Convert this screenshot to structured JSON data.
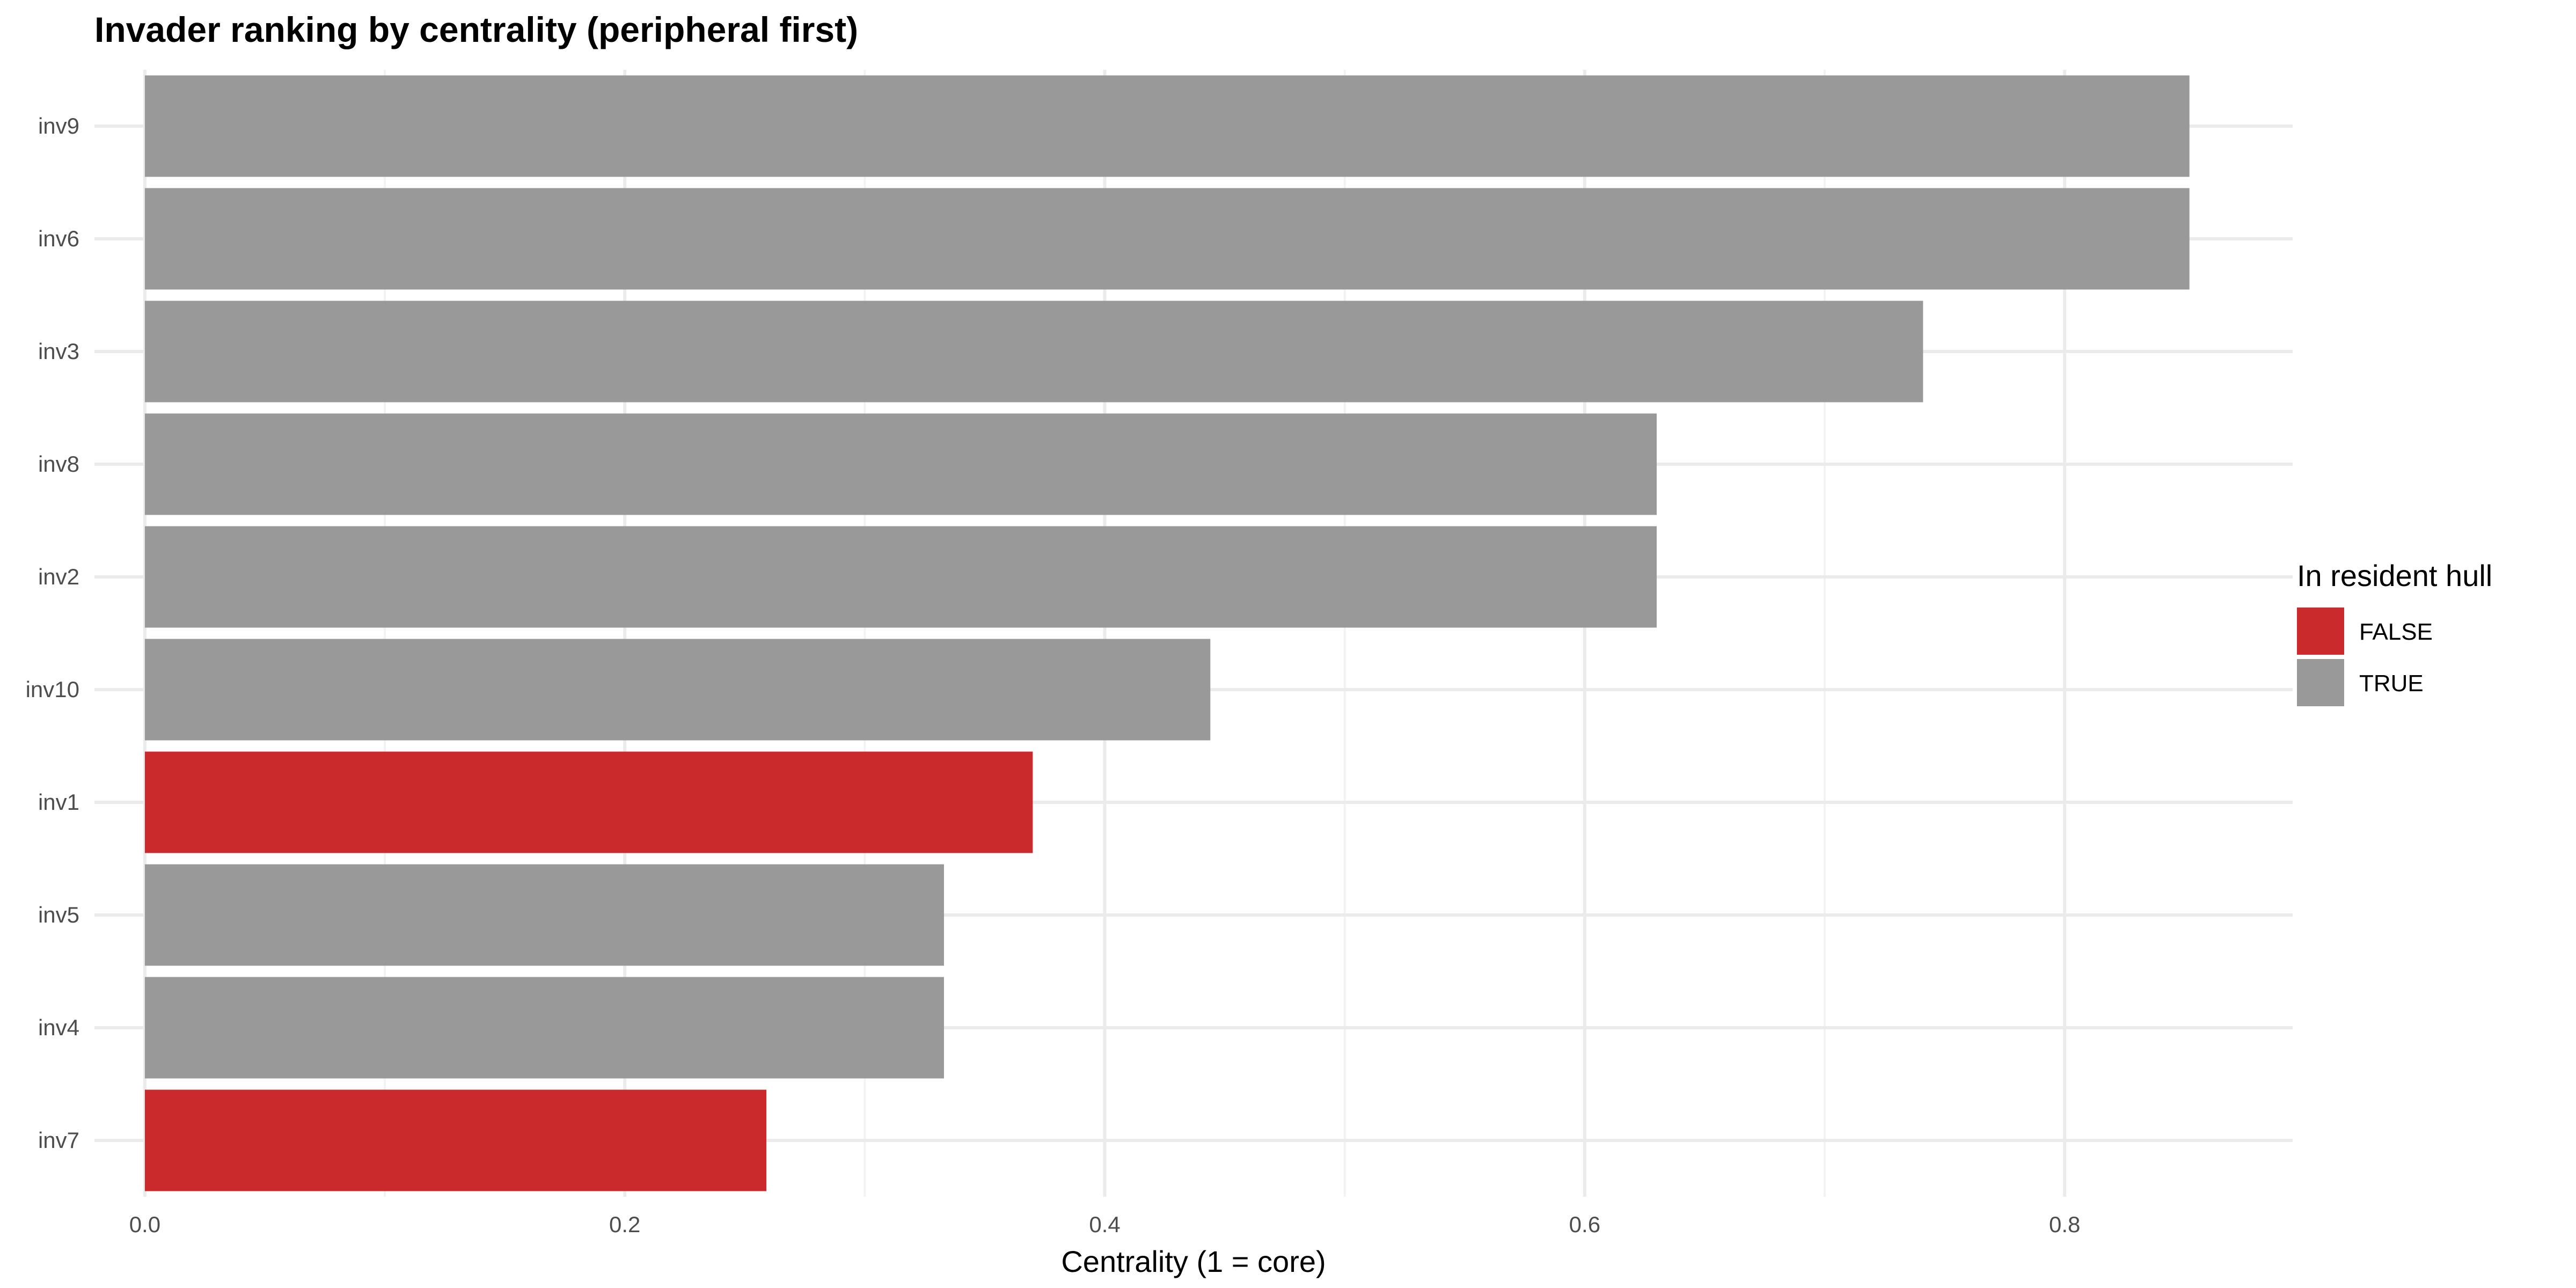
{
  "chart_data": {
    "type": "bar",
    "orientation": "horizontal",
    "title": "Invader ranking by centrality (peripheral first)",
    "xlabel": "Centrality (1 = core)",
    "ylabel": "",
    "xlim": [
      -0.021,
      0.895
    ],
    "x_ticks": [
      0.0,
      0.2,
      0.4,
      0.6,
      0.8
    ],
    "x_tick_labels": [
      "0.0",
      "0.2",
      "0.4",
      "0.6",
      "0.8"
    ],
    "grid": true,
    "categories": [
      "inv9",
      "inv6",
      "inv3",
      "inv8",
      "inv2",
      "inv10",
      "inv1",
      "inv5",
      "inv4",
      "inv7"
    ],
    "values": [
      0.852,
      0.852,
      0.741,
      0.63,
      0.63,
      0.444,
      0.37,
      0.333,
      0.333,
      0.259
    ],
    "in_hull": [
      "TRUE",
      "TRUE",
      "TRUE",
      "TRUE",
      "TRUE",
      "TRUE",
      "FALSE",
      "TRUE",
      "TRUE",
      "FALSE"
    ],
    "legend": {
      "title": "In resident hull",
      "placement": "right",
      "entries": [
        {
          "label": "FALSE",
          "color": "#cb2a2c"
        },
        {
          "label": "TRUE",
          "color": "#999999"
        }
      ]
    }
  }
}
